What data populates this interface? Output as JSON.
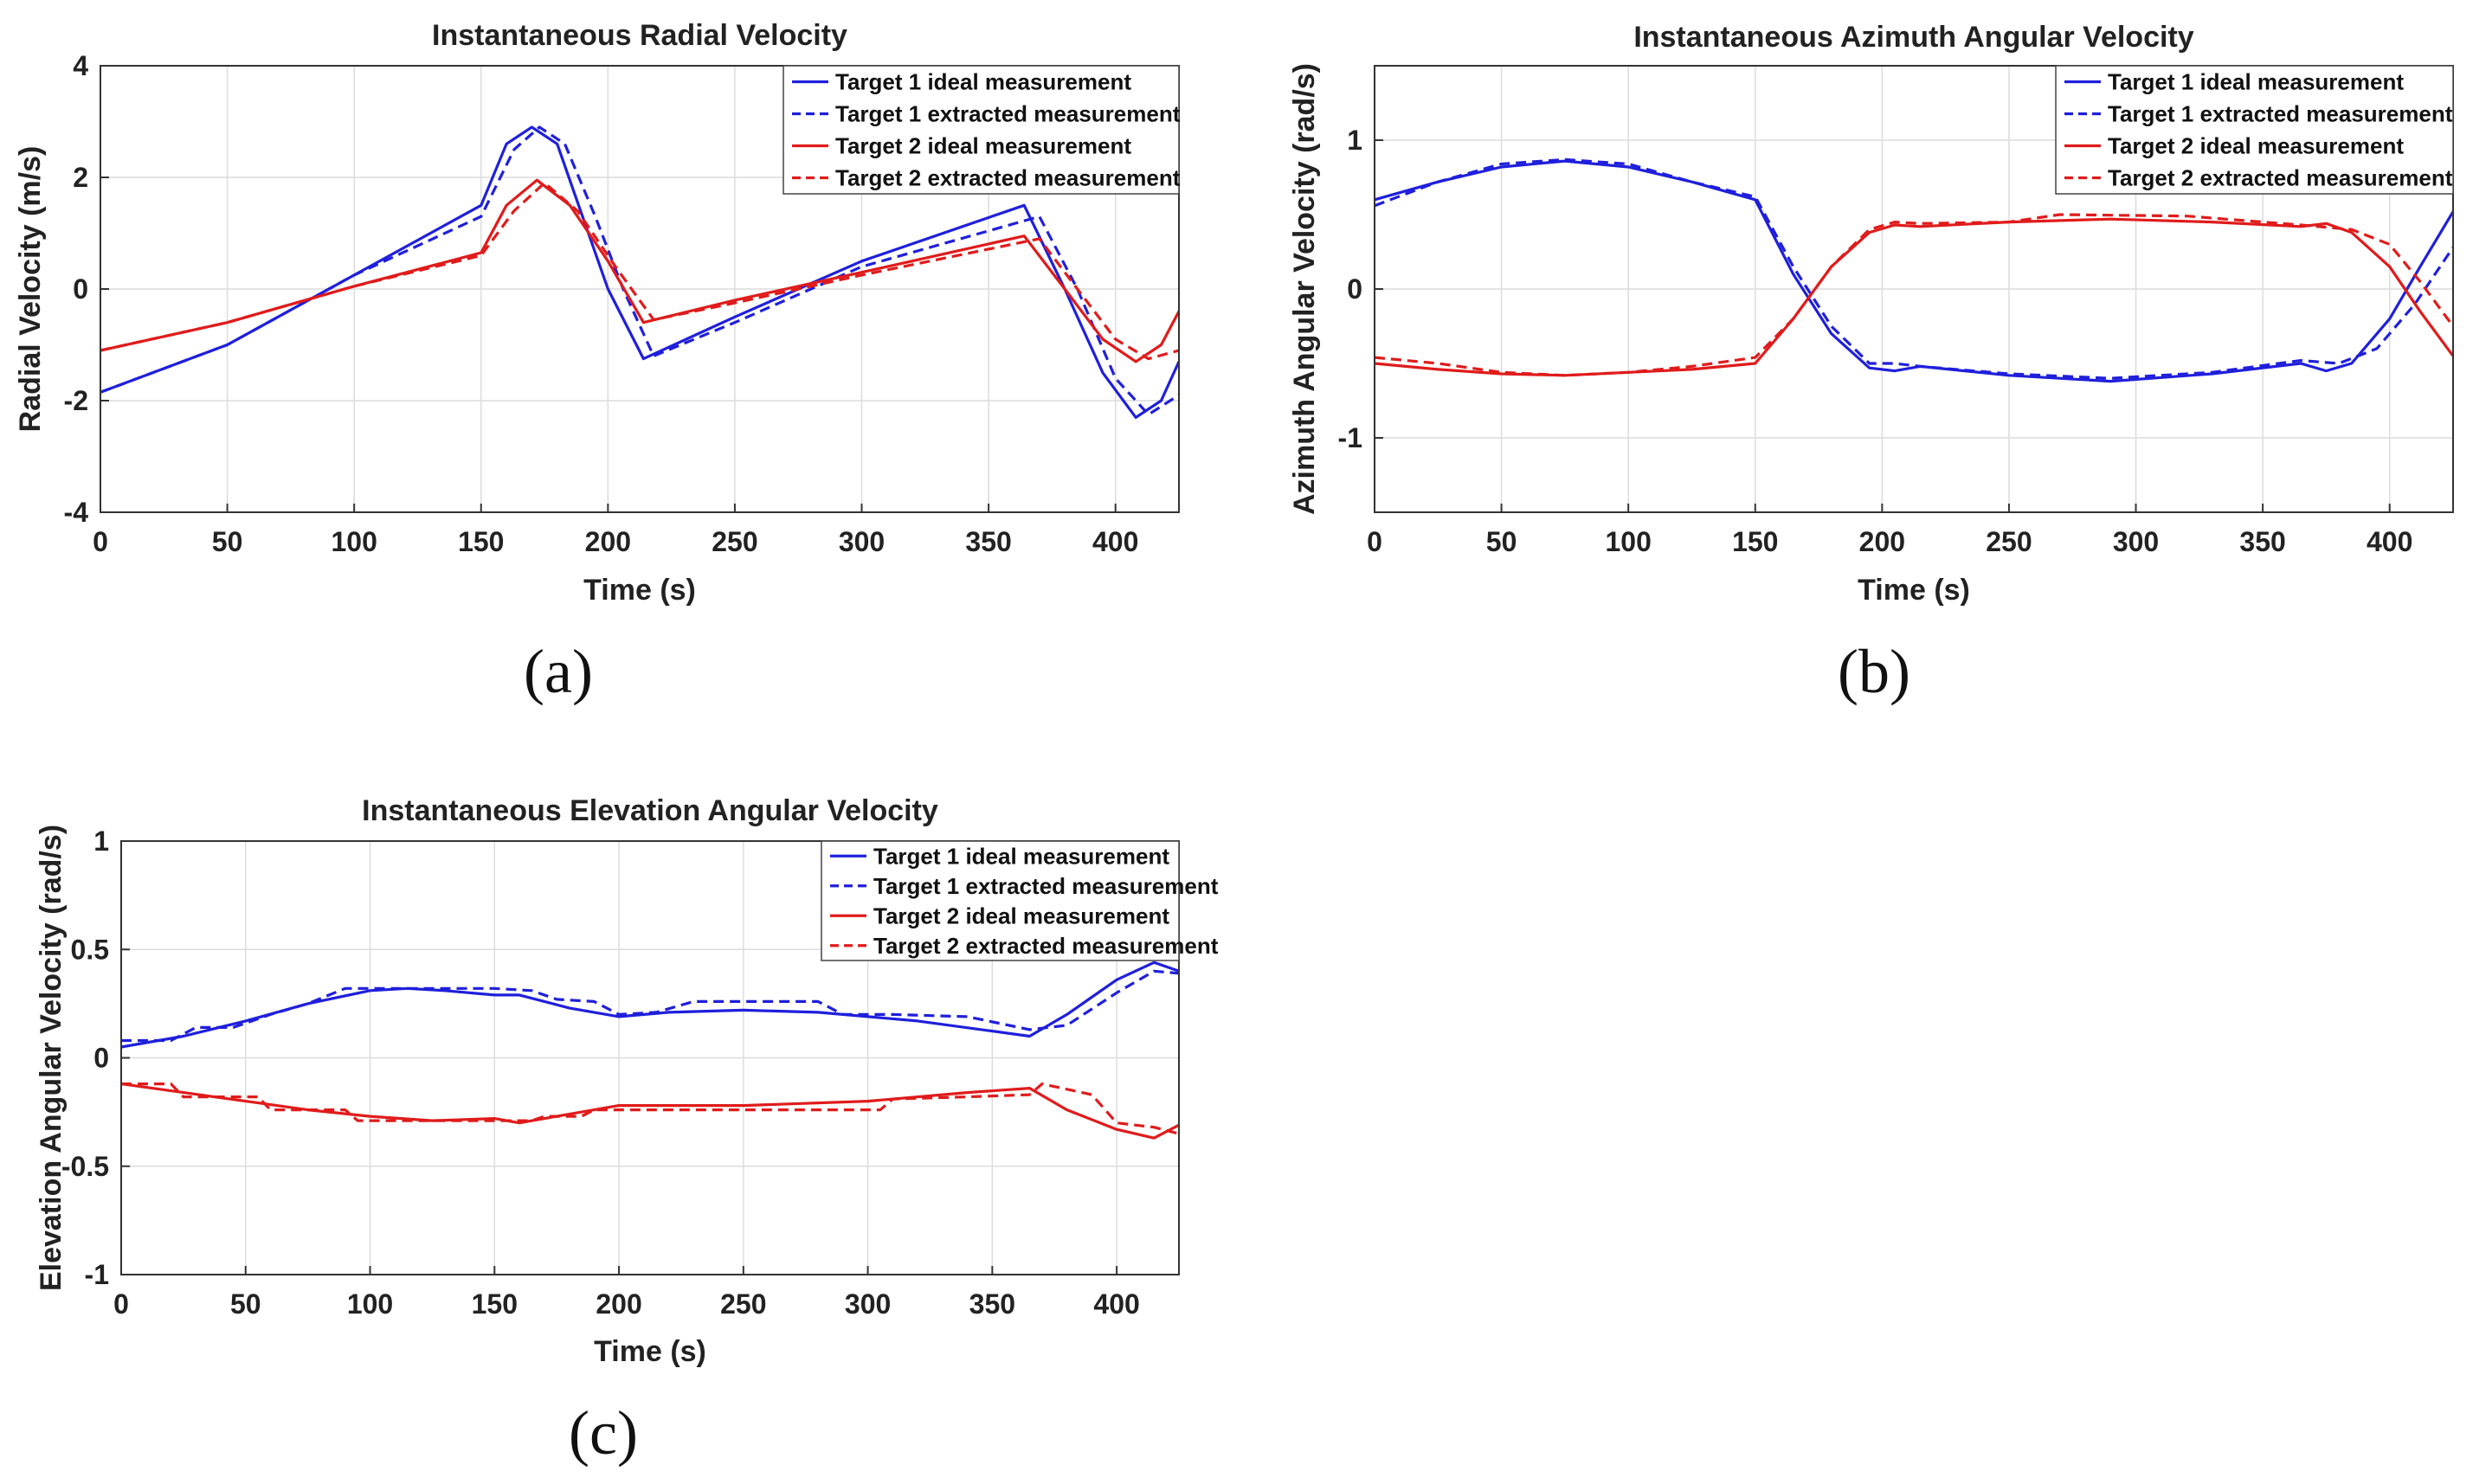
{
  "colors": {
    "target1": "#1f1fdc",
    "target2": "#e01b1b",
    "grid": "#dcdcdc",
    "axis": "#333333"
  },
  "legend_entries": [
    "Target 1 ideal measurement",
    "Target 1 extracted measurement",
    "Target 2 ideal measurement",
    "Target 2 extracted measurement"
  ],
  "chart_data": [
    {
      "type": "line",
      "panel": "(a)",
      "title": "Instantaneous Radial Velocity",
      "xlabel": "Time (s)",
      "ylabel": "Radial Velocity (m/s)",
      "xlim": [
        0,
        425
      ],
      "ylim": [
        -4,
        4
      ],
      "xticks": [
        0,
        50,
        100,
        150,
        200,
        250,
        300,
        350,
        400
      ],
      "xtick_labels": [
        "0",
        "50",
        "100",
        "150",
        "200",
        "250",
        "300",
        "350",
        "400"
      ],
      "yticks": [
        -4,
        -2,
        0,
        2,
        4
      ],
      "ytick_labels": [
        "-4",
        "-2",
        "0",
        "2",
        "4"
      ],
      "legend": "top-right",
      "series": [
        {
          "name": "Target 1 ideal measurement",
          "color": "#1f1fdc",
          "style": "solid",
          "x": [
            0,
            50,
            100,
            150,
            160,
            170,
            180,
            190,
            200,
            214,
            250,
            300,
            364,
            380,
            395,
            408,
            418,
            425
          ],
          "y": [
            -1.85,
            -1.0,
            0.25,
            1.5,
            2.6,
            2.9,
            2.6,
            1.3,
            0.0,
            -1.25,
            -0.5,
            0.5,
            1.5,
            0.0,
            -1.5,
            -2.3,
            -2.0,
            -1.3
          ]
        },
        {
          "name": "Target 1 extracted measurement",
          "color": "#1f1fdc",
          "style": "dashed",
          "x": [
            0,
            50,
            100,
            150,
            163,
            173,
            183,
            195,
            206,
            218,
            250,
            300,
            370,
            385,
            400,
            413,
            425
          ],
          "y": [
            -1.85,
            -1.0,
            0.25,
            1.3,
            2.5,
            2.9,
            2.6,
            1.3,
            0.0,
            -1.2,
            -0.6,
            0.4,
            1.3,
            0.0,
            -1.6,
            -2.25,
            -1.9
          ]
        },
        {
          "name": "Target 2 ideal measurement",
          "color": "#e01b1b",
          "style": "solid",
          "x": [
            0,
            50,
            100,
            150,
            160,
            172,
            185,
            200,
            214,
            250,
            300,
            364,
            380,
            395,
            408,
            418,
            425
          ],
          "y": [
            -1.1,
            -0.6,
            0.05,
            0.65,
            1.5,
            1.95,
            1.5,
            0.5,
            -0.6,
            -0.2,
            0.3,
            0.95,
            0.0,
            -0.9,
            -1.3,
            -1.0,
            -0.4
          ]
        },
        {
          "name": "Target 2 extracted measurement",
          "color": "#e01b1b",
          "style": "dashed",
          "x": [
            0,
            50,
            100,
            150,
            163,
            175,
            188,
            203,
            218,
            250,
            300,
            370,
            385,
            400,
            413,
            425
          ],
          "y": [
            -1.1,
            -0.6,
            0.05,
            0.6,
            1.4,
            1.9,
            1.4,
            0.4,
            -0.55,
            -0.25,
            0.25,
            0.9,
            0.0,
            -0.9,
            -1.25,
            -1.1
          ]
        }
      ]
    },
    {
      "type": "line",
      "panel": "(b)",
      "title": "Instantaneous Azimuth Angular Velocity",
      "xlabel": "Time (s)",
      "ylabel": "Azimuth Angular Velocity (rad/s)",
      "xlim": [
        0,
        425
      ],
      "ylim": [
        -1.5,
        1.5
      ],
      "xticks": [
        0,
        50,
        100,
        150,
        200,
        250,
        300,
        350,
        400
      ],
      "xtick_labels": [
        "0",
        "50",
        "100",
        "150",
        "200",
        "250",
        "300",
        "350",
        "400"
      ],
      "yticks": [
        -1,
        0,
        1
      ],
      "ytick_labels": [
        "-1",
        "0",
        "1"
      ],
      "legend": "top-right",
      "series": [
        {
          "name": "Target 1 ideal measurement",
          "color": "#1f1fdc",
          "style": "solid",
          "x": [
            0,
            25,
            50,
            75,
            100,
            125,
            150,
            165,
            180,
            195,
            205,
            215,
            250,
            290,
            330,
            365,
            375,
            385,
            400,
            412,
            425
          ],
          "y": [
            0.6,
            0.72,
            0.82,
            0.86,
            0.82,
            0.72,
            0.6,
            0.1,
            -0.3,
            -0.53,
            -0.55,
            -0.52,
            -0.58,
            -0.62,
            -0.57,
            -0.5,
            -0.55,
            -0.5,
            -0.2,
            0.15,
            0.52
          ]
        },
        {
          "name": "Target 1 extracted measurement",
          "color": "#1f1fdc",
          "style": "dashed",
          "x": [
            0,
            25,
            50,
            75,
            100,
            125,
            150,
            165,
            180,
            195,
            205,
            215,
            250,
            290,
            330,
            365,
            380,
            395,
            410,
            425
          ],
          "y": [
            0.56,
            0.72,
            0.84,
            0.87,
            0.84,
            0.72,
            0.62,
            0.15,
            -0.25,
            -0.5,
            -0.5,
            -0.52,
            -0.57,
            -0.6,
            -0.56,
            -0.48,
            -0.5,
            -0.4,
            -0.1,
            0.28
          ]
        },
        {
          "name": "Target 2 ideal measurement",
          "color": "#e01b1b",
          "style": "solid",
          "x": [
            0,
            25,
            50,
            75,
            100,
            125,
            150,
            165,
            180,
            195,
            205,
            215,
            250,
            290,
            330,
            365,
            375,
            385,
            400,
            412,
            425
          ],
          "y": [
            -0.5,
            -0.54,
            -0.57,
            -0.58,
            -0.56,
            -0.54,
            -0.5,
            -0.2,
            0.15,
            0.38,
            0.43,
            0.42,
            0.45,
            0.47,
            0.45,
            0.42,
            0.44,
            0.38,
            0.15,
            -0.15,
            -0.45
          ]
        },
        {
          "name": "Target 2 extracted measurement",
          "color": "#e01b1b",
          "style": "dashed",
          "x": [
            0,
            25,
            50,
            75,
            100,
            125,
            150,
            165,
            180,
            195,
            205,
            215,
            250,
            270,
            320,
            365,
            385,
            400,
            412,
            425
          ],
          "y": [
            -0.46,
            -0.5,
            -0.56,
            -0.58,
            -0.56,
            -0.52,
            -0.46,
            -0.2,
            0.15,
            0.4,
            0.45,
            0.44,
            0.45,
            0.5,
            0.49,
            0.43,
            0.4,
            0.3,
            0.05,
            -0.25
          ]
        }
      ]
    },
    {
      "type": "line",
      "panel": "(c)",
      "title": "Instantaneous Elevation Angular Velocity",
      "xlabel": "Time (s)",
      "ylabel": "Elevation Angular Velocity (rad/s)",
      "xlim": [
        0,
        425
      ],
      "ylim": [
        -1,
        1
      ],
      "xticks": [
        0,
        50,
        100,
        150,
        200,
        250,
        300,
        350,
        400
      ],
      "xtick_labels": [
        "0",
        "50",
        "100",
        "150",
        "200",
        "250",
        "300",
        "350",
        "400"
      ],
      "yticks": [
        -1,
        -0.5,
        0,
        0.5,
        1
      ],
      "ytick_labels": [
        "-1",
        "-0.5",
        "0",
        "0.5",
        "1"
      ],
      "legend": "top-right",
      "series": [
        {
          "name": "Target 1 ideal measurement",
          "color": "#1f1fdc",
          "style": "solid",
          "x": [
            0,
            25,
            50,
            75,
            100,
            115,
            130,
            150,
            160,
            180,
            200,
            220,
            250,
            280,
            320,
            365,
            380,
            400,
            415,
            425
          ],
          "y": [
            0.05,
            0.1,
            0.17,
            0.25,
            0.31,
            0.32,
            0.31,
            0.29,
            0.29,
            0.23,
            0.19,
            0.21,
            0.22,
            0.21,
            0.17,
            0.1,
            0.2,
            0.36,
            0.44,
            0.4
          ]
        },
        {
          "name": "Target 1 extracted measurement",
          "color": "#1f1fdc",
          "style": "dashed",
          "x": [
            0,
            20,
            30,
            45,
            60,
            75,
            90,
            110,
            130,
            150,
            165,
            175,
            190,
            200,
            215,
            230,
            250,
            280,
            290,
            310,
            340,
            365,
            380,
            400,
            415,
            425
          ],
          "y": [
            0.08,
            0.08,
            0.14,
            0.14,
            0.2,
            0.25,
            0.32,
            0.32,
            0.32,
            0.32,
            0.31,
            0.27,
            0.26,
            0.2,
            0.21,
            0.26,
            0.26,
            0.26,
            0.2,
            0.2,
            0.19,
            0.13,
            0.15,
            0.3,
            0.4,
            0.39
          ]
        },
        {
          "name": "Target 2 ideal measurement",
          "color": "#e01b1b",
          "style": "solid",
          "x": [
            0,
            25,
            50,
            75,
            100,
            125,
            150,
            160,
            175,
            200,
            225,
            250,
            300,
            340,
            365,
            380,
            400,
            415,
            425
          ],
          "y": [
            -0.12,
            -0.16,
            -0.2,
            -0.24,
            -0.27,
            -0.29,
            -0.28,
            -0.3,
            -0.27,
            -0.22,
            -0.22,
            -0.22,
            -0.2,
            -0.16,
            -0.14,
            -0.24,
            -0.33,
            -0.37,
            -0.31
          ]
        },
        {
          "name": "Target 2 extracted measurement",
          "color": "#e01b1b",
          "style": "dashed",
          "x": [
            0,
            20,
            25,
            55,
            60,
            90,
            95,
            125,
            150,
            165,
            170,
            185,
            190,
            230,
            260,
            305,
            310,
            340,
            365,
            370,
            390,
            400,
            415,
            425
          ],
          "y": [
            -0.12,
            -0.12,
            -0.18,
            -0.18,
            -0.24,
            -0.24,
            -0.29,
            -0.29,
            -0.29,
            -0.29,
            -0.27,
            -0.27,
            -0.24,
            -0.24,
            -0.24,
            -0.24,
            -0.19,
            -0.18,
            -0.17,
            -0.12,
            -0.17,
            -0.3,
            -0.32,
            -0.35
          ]
        }
      ]
    }
  ]
}
